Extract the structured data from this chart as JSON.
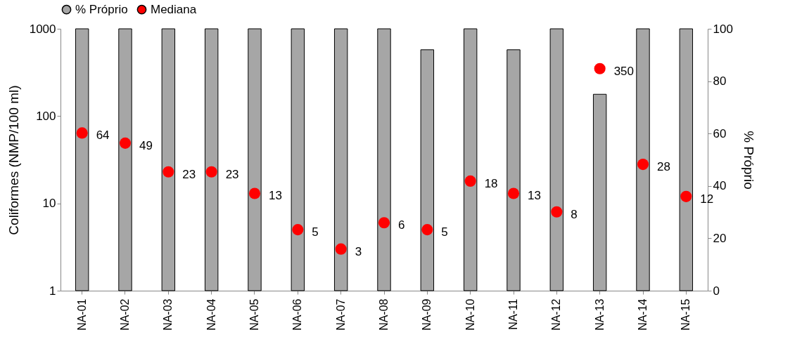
{
  "chart_data": {
    "type": "bar",
    "categories": [
      "NA-01",
      "NA-02",
      "NA-03",
      "NA-04",
      "NA-05",
      "NA-06",
      "NA-07",
      "NA-08",
      "NA-09",
      "NA-10",
      "NA-11",
      "NA-12",
      "NA-13",
      "NA-14",
      "NA-15"
    ],
    "series": [
      {
        "name": "% Próprio",
        "type": "bar",
        "axis": "y2",
        "color": "#a6a6a6",
        "values": [
          100,
          100,
          100,
          100,
          100,
          100,
          100,
          100,
          92,
          100,
          92,
          100,
          75,
          100,
          100
        ]
      },
      {
        "name": "Mediana",
        "type": "scatter",
        "color": "#ff0000",
        "values": [
          64,
          49,
          23,
          23,
          13,
          5,
          3,
          6,
          5,
          18,
          13,
          8,
          350,
          28,
          12
        ],
        "value_labels": [
          "64",
          "49",
          "23",
          "23",
          "13",
          "5",
          "3",
          "6",
          "5",
          "18",
          "13",
          "8",
          "350",
          "28",
          "12"
        ]
      }
    ],
    "ylabel": "Coliformes (NMP/100 ml)",
    "y2label": "% Próprio",
    "log": "y",
    "ylim": [
      1,
      1000
    ],
    "yticks": [
      1,
      10,
      100,
      1000
    ],
    "y2lim": [
      0,
      100
    ],
    "y2ticks": [
      0,
      20,
      40,
      60,
      80,
      100
    ],
    "grid": false,
    "legend": "top",
    "marker": "circle"
  }
}
